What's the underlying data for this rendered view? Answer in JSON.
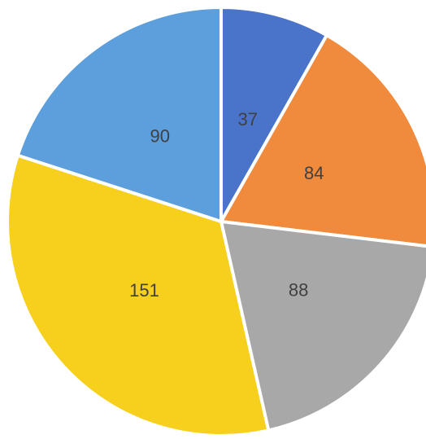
{
  "chart_data": {
    "type": "pie",
    "values": [
      37,
      84,
      88,
      151,
      90
    ],
    "colors": [
      "#4a74c9",
      "#f08a3c",
      "#a8a8a8",
      "#f6d01c",
      "#5c9fdc"
    ]
  }
}
